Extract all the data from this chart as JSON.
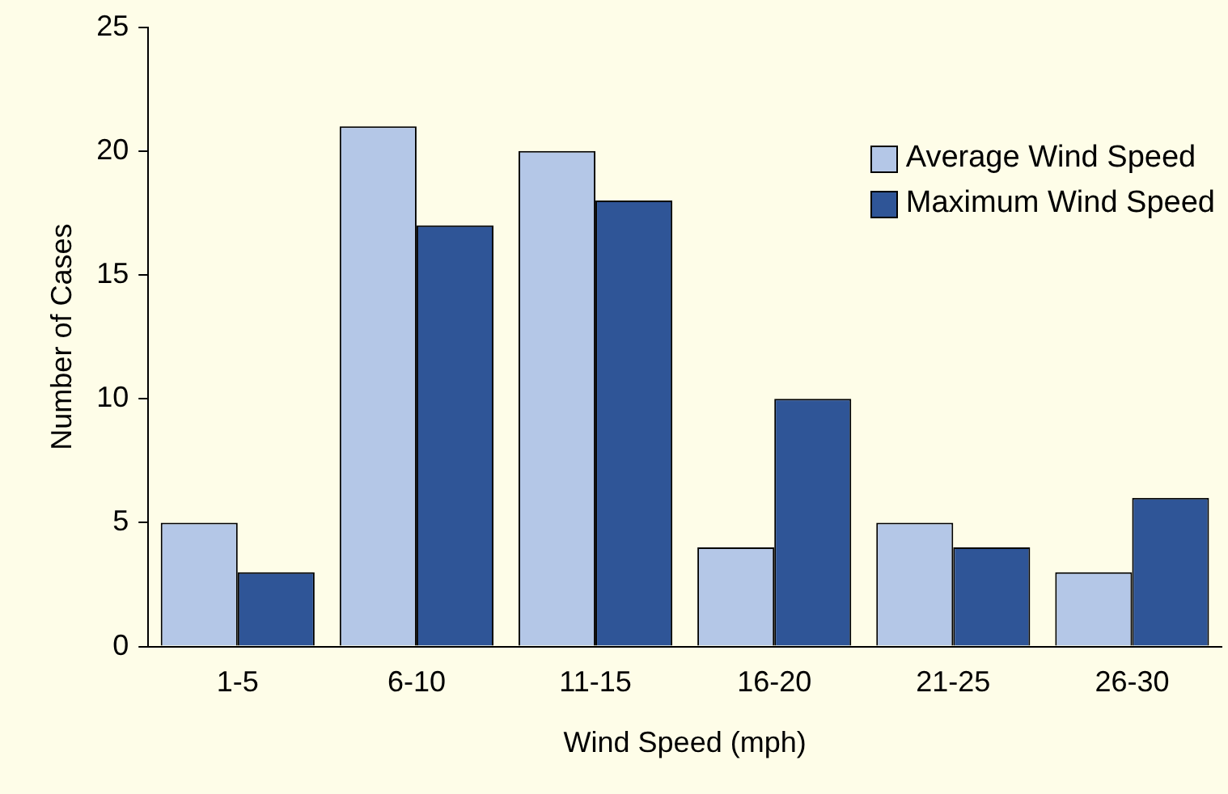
{
  "chart_data": {
    "type": "bar",
    "xlabel": "Wind Speed (mph)",
    "ylabel": "Number of Cases",
    "categories": [
      "1-5",
      "6-10",
      "11-15",
      "16-20",
      "21-25",
      "26-30"
    ],
    "series": [
      {
        "name": "Average Wind Speed",
        "color": "#b4c7e7",
        "values": [
          5,
          21,
          20,
          4,
          5,
          3
        ]
      },
      {
        "name": "Maximum Wind Speed",
        "color": "#2f5597",
        "values": [
          3,
          17,
          18,
          10,
          4,
          6
        ]
      }
    ],
    "ylim": [
      0,
      25
    ],
    "yticks": [
      0,
      5,
      10,
      15,
      20,
      25
    ],
    "grid": false,
    "legend": "top right"
  }
}
